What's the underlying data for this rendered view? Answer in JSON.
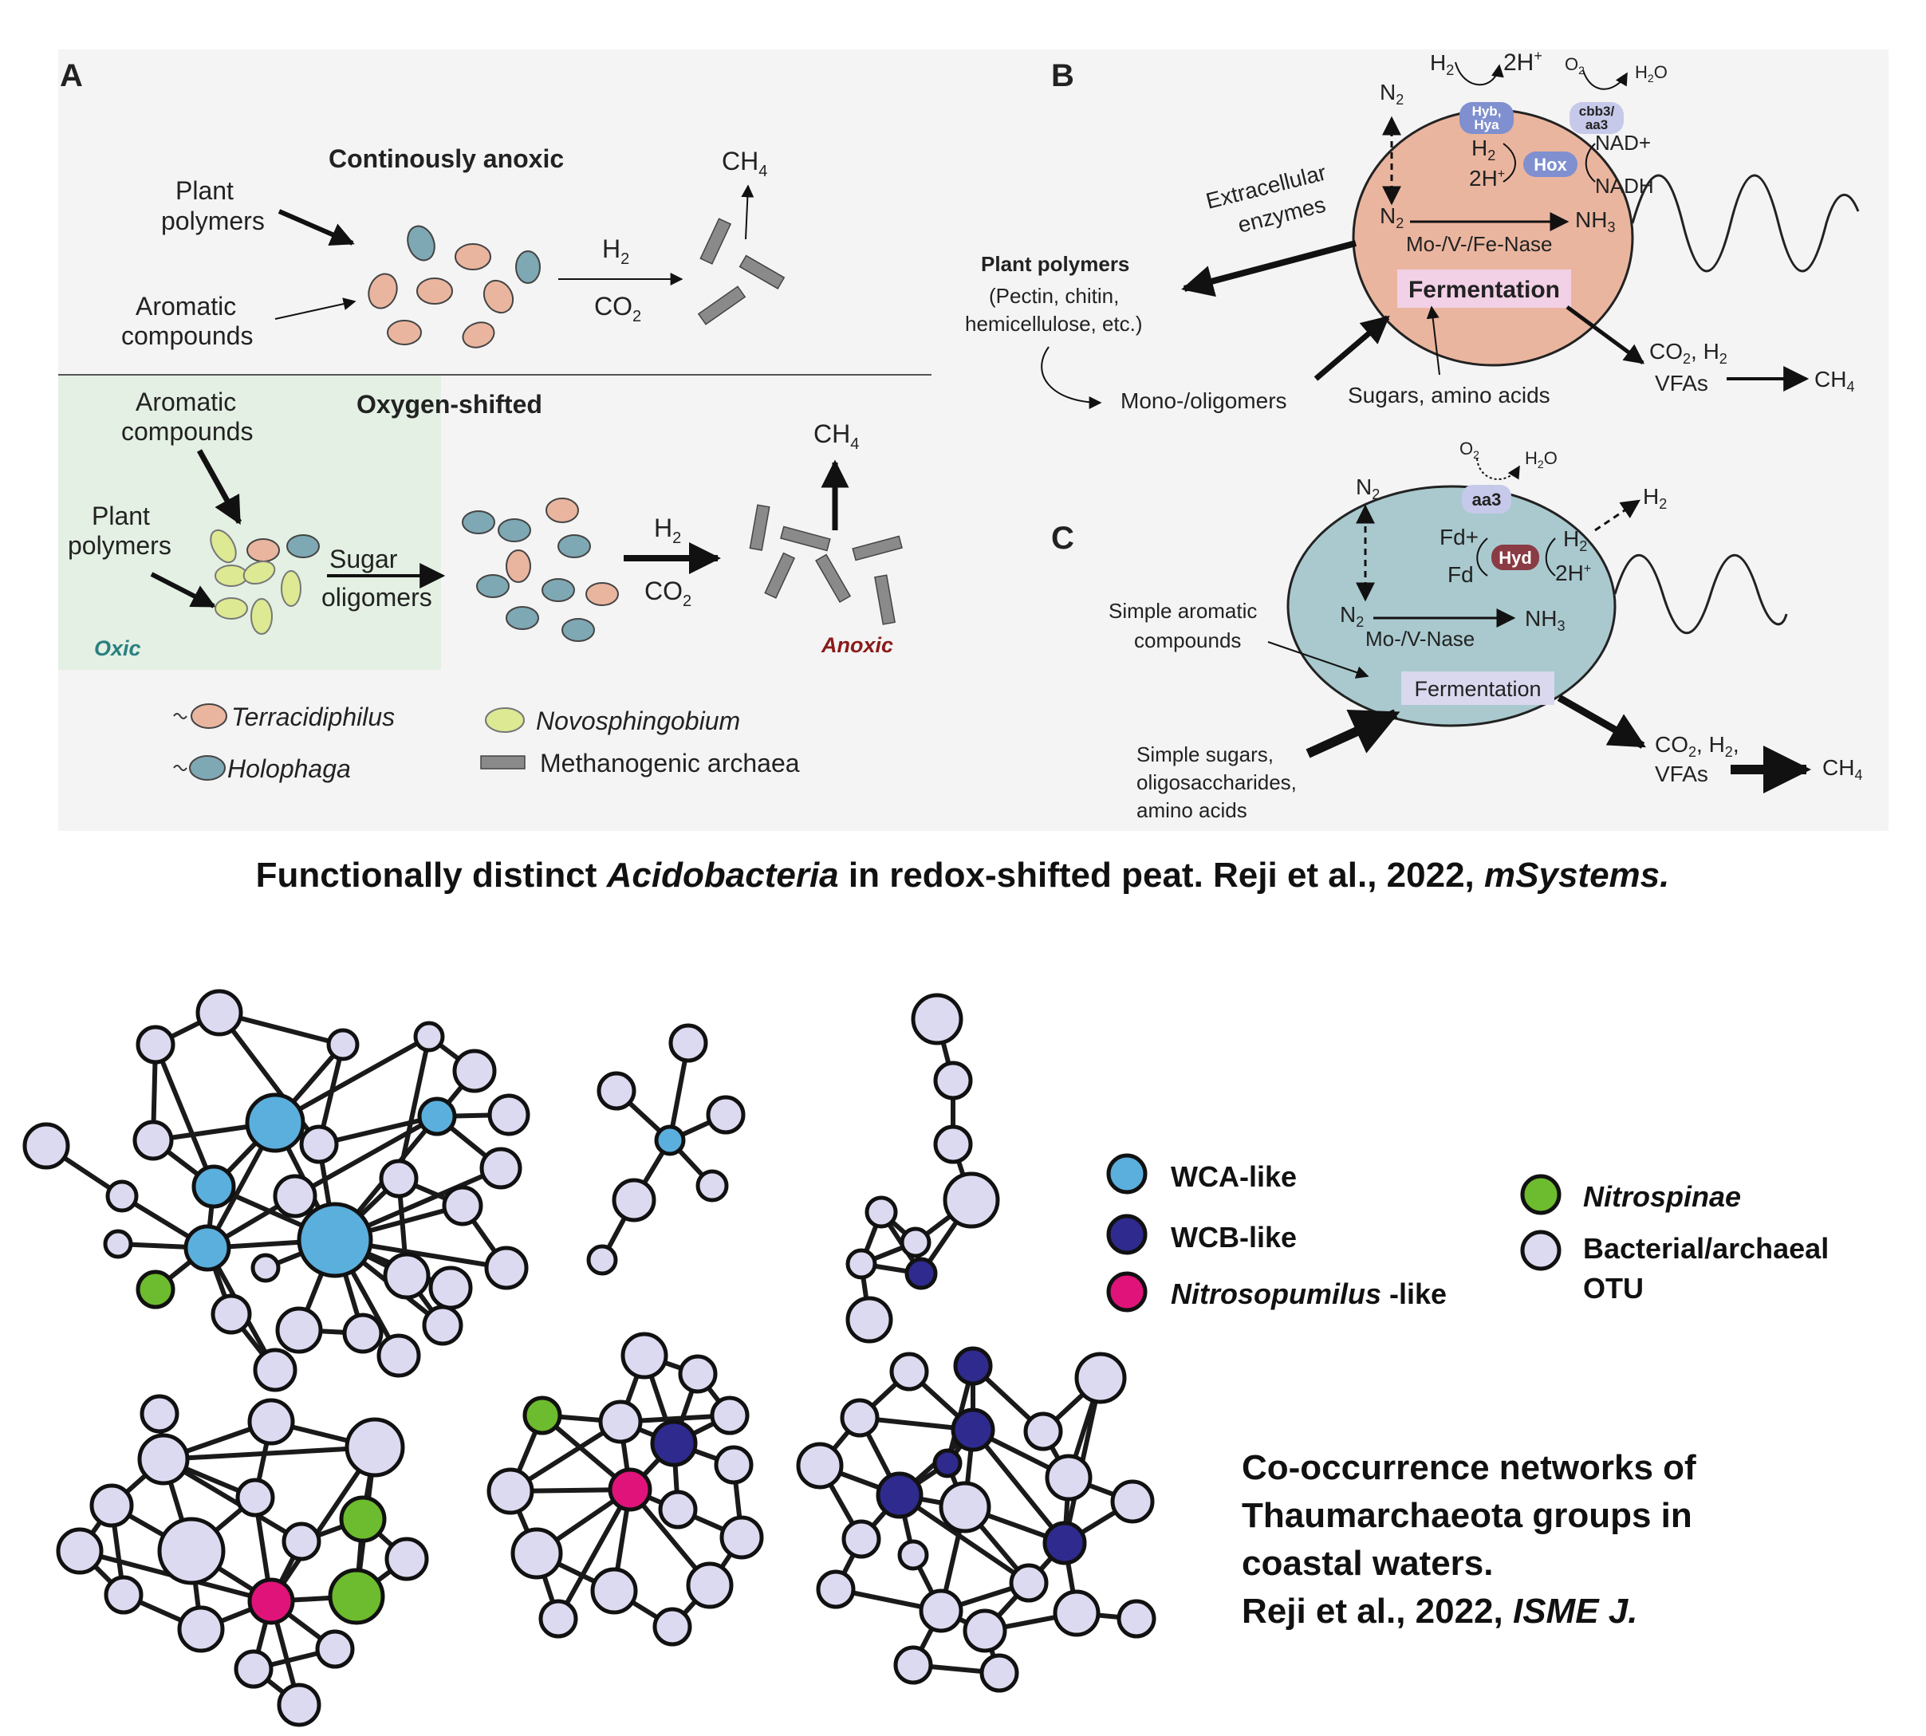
{
  "colors": {
    "panel_bg": "#f4f4f4",
    "oxic_bg": "#e3f0e3",
    "terracidiphilus": "#eab59f",
    "holophaga": "#7ea8b3",
    "novosphingobium": "#dde993",
    "methanogen": "#8a8a8a",
    "cell_b": "#eab59f",
    "cell_c": "#a9c9ce",
    "fermentation_bg": "#f2d0e6",
    "fermentation_c_bg": "#d9d8ee",
    "protein_blue": "#7f8fcf",
    "protein_light": "#c7c9ea",
    "hyd": "#8a3b44",
    "wca": "#5aafdd",
    "wcb": "#2e2a8e",
    "nitrosopumilus": "#e0137a",
    "nitrospinae": "#6dbb2e",
    "otu": "#dcdaf0"
  },
  "panel_a": {
    "label": "A",
    "top_title": "Continously anoxic",
    "plant_polymers_1": "Plant",
    "plant_polymers_2": "polymers",
    "aromatic_1": "Aromatic",
    "aromatic_2": "compounds",
    "h2": "H",
    "h2_sub": "2",
    "co2": "CO",
    "co2_sub": "2",
    "ch4": "CH",
    "ch4_sub": "4",
    "bottom_title": "Oxygen-shifted",
    "sugar": "Sugar",
    "oligomers": "oligomers",
    "oxic": "Oxic",
    "anoxic": "Anoxic",
    "legend": {
      "terracidiphilus": "Terracidiphilus",
      "holophaga": "Holophaga",
      "novosphingobium": "Novosphingobium",
      "methanogenic": "Methanogenic archaea"
    }
  },
  "panel_b": {
    "label": "B",
    "h2": "H",
    "two_h_plus": "2H",
    "o2": "O",
    "h2o": "H",
    "hyb_1": "Hyb,",
    "hyb_2": "Hya",
    "cbb_1": "cbb3/",
    "cbb_2": "aa3",
    "n2": "N",
    "hox": "Hox",
    "nad": "NAD+",
    "nadh": "NADH",
    "nh3": "NH",
    "nase": "Mo-/V-/Fe-Nase",
    "extracellular_1": "Extracellular",
    "extracellular_2": "enzymes",
    "plant_polymers": "Plant polymers",
    "pectin_1": "(Pectin, chitin,",
    "pectin_2": "hemicellulose, etc.)",
    "fermentation": "Fermentation",
    "mono": "Mono-/oligomers",
    "sugars": "Sugars, amino acids",
    "co2_h2": "CO",
    "vfas": "VFAs",
    "ch4": "CH"
  },
  "panel_c": {
    "label": "C",
    "o2": "O",
    "h2o": "H",
    "aa3": "aa3",
    "n2": "N",
    "h2": "H",
    "fd_plus": "Fd+",
    "fd": "Fd",
    "hyd": "Hyd",
    "two_h_plus": "2H",
    "nh3": "NH",
    "nase": "Mo-/V-Nase",
    "simple_aromatic_1": "Simple aromatic",
    "simple_aromatic_2": "compounds",
    "fermentation": "Fermentation",
    "simple_sugars_1": "Simple sugars,",
    "simple_sugars_2": "oligosaccharides,",
    "simple_sugars_3": "amino acids",
    "co2_h2": "CO",
    "vfas": "VFAs",
    "ch4": "CH"
  },
  "caption_top": {
    "part1": "Functionally distinct ",
    "part2": "Acidobacteria",
    "part3": " in redox-shifted peat. Reji et al., 2022, ",
    "part4": "mSystems."
  },
  "network_legend": {
    "wca": "WCA-like",
    "wcb": "WCB-like",
    "nitrosopumilus": "Nitrosopumilus",
    "nitrosopumilus_suffix": " -like",
    "nitrospinae": "Nitrospinae",
    "otu_1": "Bacterial/archaeal",
    "otu_2": "OTU"
  },
  "caption_bottom": {
    "line1": "Co-occurrence networks of",
    "line2": "Thaumarchaeota groups in",
    "line3": "coastal waters.",
    "line4a": "Reji et al., 2022, ",
    "line4b": "ISME J."
  }
}
